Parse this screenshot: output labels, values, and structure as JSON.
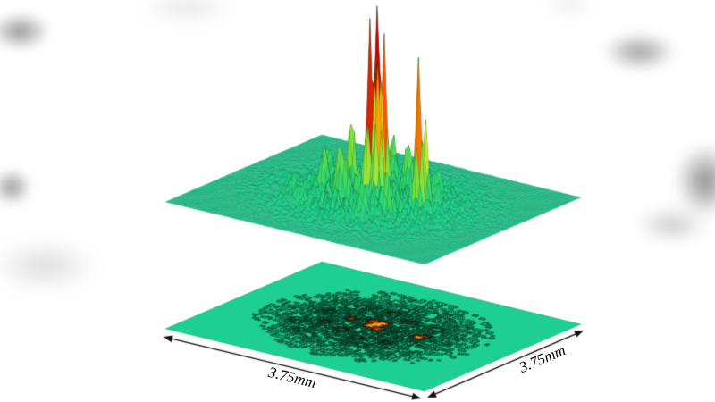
{
  "figure": {
    "x_dimension_label": "3.75mm",
    "y_dimension_label": "3.75mm"
  },
  "chart_data": {
    "type": "heatmap",
    "variant": "3d-surface-plot-with-2d-contour-projection",
    "title": "",
    "xlabel": "3.75mm",
    "ylabel": "3.75mm",
    "x_extent_mm": 3.75,
    "y_extent_mm": 3.75,
    "z_units": "relative intensity",
    "legend": "none",
    "grid": 80,
    "surface_base_color": "#1ecf93",
    "mesh_line_color": "#055f3c",
    "arrow_color": "#111111",
    "colormap": [
      {
        "t": 0.0,
        "color": "#1ecf93"
      },
      {
        "t": 0.18,
        "color": "#33d96b"
      },
      {
        "t": 0.34,
        "color": "#7fe23c"
      },
      {
        "t": 0.47,
        "color": "#c8ea2a"
      },
      {
        "t": 0.58,
        "color": "#ffe214"
      },
      {
        "t": 0.72,
        "color": "#ffa100"
      },
      {
        "t": 0.86,
        "color": "#ff4f00"
      },
      {
        "t": 1.0,
        "color": "#cf0000"
      }
    ],
    "peaks": [
      {
        "u": 0.5,
        "v": 0.52,
        "sigma": 0.01,
        "a": 1.0
      },
      {
        "u": 0.485,
        "v": 0.5,
        "sigma": 0.009,
        "a": 0.92
      },
      {
        "u": 0.515,
        "v": 0.545,
        "sigma": 0.009,
        "a": 0.83
      },
      {
        "u": 0.53,
        "v": 0.49,
        "sigma": 0.01,
        "a": 0.66
      },
      {
        "u": 0.47,
        "v": 0.55,
        "sigma": 0.011,
        "a": 0.58
      },
      {
        "u": 0.67,
        "v": 0.5,
        "sigma": 0.01,
        "a": 0.72
      },
      {
        "u": 0.69,
        "v": 0.53,
        "sigma": 0.009,
        "a": 0.45
      },
      {
        "u": 0.4,
        "v": 0.52,
        "sigma": 0.012,
        "a": 0.35
      },
      {
        "u": 0.44,
        "v": 0.4,
        "sigma": 0.013,
        "a": 0.28
      },
      {
        "u": 0.56,
        "v": 0.62,
        "sigma": 0.012,
        "a": 0.26
      },
      {
        "u": 0.35,
        "v": 0.44,
        "sigma": 0.014,
        "a": 0.22
      },
      {
        "u": 0.62,
        "v": 0.38,
        "sigma": 0.013,
        "a": 0.2
      },
      {
        "u": 0.3,
        "v": 0.55,
        "sigma": 0.015,
        "a": 0.17
      },
      {
        "u": 0.47,
        "v": 0.68,
        "sigma": 0.014,
        "a": 0.18
      },
      {
        "u": 0.57,
        "v": 0.3,
        "sigma": 0.014,
        "a": 0.15
      },
      {
        "u": 0.68,
        "v": 0.62,
        "sigma": 0.015,
        "a": 0.13
      },
      {
        "u": 0.27,
        "v": 0.38,
        "sigma": 0.016,
        "a": 0.12
      },
      {
        "u": 0.38,
        "v": 0.66,
        "sigma": 0.015,
        "a": 0.13
      },
      {
        "u": 0.52,
        "v": 0.36,
        "sigma": 0.012,
        "a": 0.16
      },
      {
        "u": 0.33,
        "v": 0.3,
        "sigma": 0.015,
        "a": 0.1
      }
    ],
    "speckle": {
      "amplitude": 0.15,
      "envelope_sigma": 0.18,
      "threshold": 0.4
    },
    "contour_levels": [
      {
        "level": 0.012,
        "color": "#0b5c3c"
      },
      {
        "level": 0.03,
        "color": "#094d32"
      },
      {
        "level": 0.06,
        "color": "#073d27"
      },
      {
        "level": 0.11,
        "color": "#05301f"
      },
      {
        "level": 0.19,
        "color": "#1a1a10"
      },
      {
        "level": 0.3,
        "color": "#8f1a00"
      },
      {
        "level": 0.5,
        "color": "#e03000"
      },
      {
        "level": 0.72,
        "color": "#ffd400"
      }
    ]
  }
}
